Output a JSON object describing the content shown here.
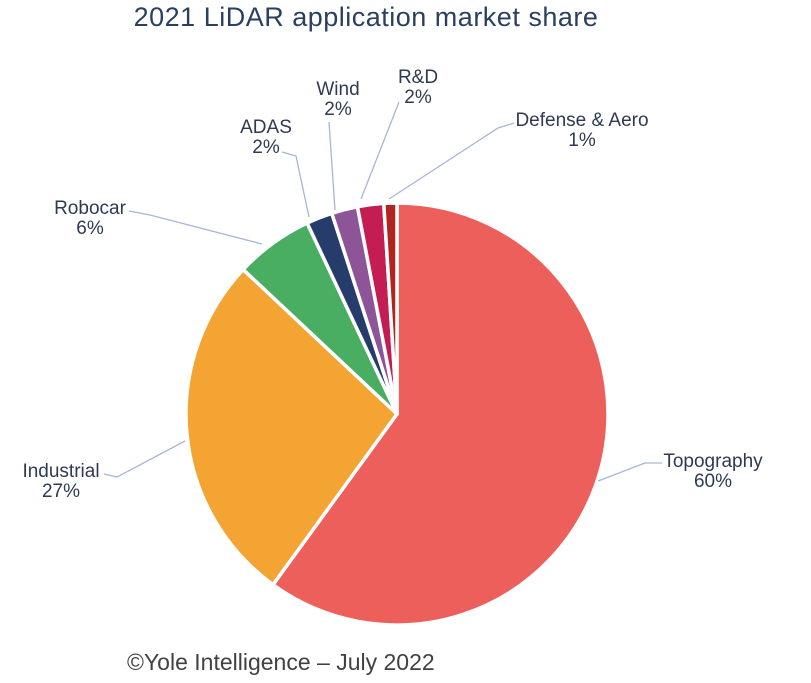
{
  "title": "2021 LiDAR application market share",
  "footer": {
    "text": "©Yole Intelligence – July 2022"
  },
  "chart_data": {
    "type": "pie",
    "title": "2021 LiDAR application market share",
    "start_angle_deg": 0,
    "direction": "clockwise",
    "total": 100,
    "legend_position": "callout-labels",
    "slices": [
      {
        "label": "Topography",
        "value": 60,
        "pct_label": "60%",
        "color": "#EC5F5A"
      },
      {
        "label": "Industrial",
        "value": 27,
        "pct_label": "27%",
        "color": "#F4A433"
      },
      {
        "label": "Robocar",
        "value": 6,
        "pct_label": "6%",
        "color": "#49AE62"
      },
      {
        "label": "ADAS",
        "value": 2,
        "pct_label": "2%",
        "color": "#263C6B"
      },
      {
        "label": "Wind",
        "value": 2,
        "pct_label": "2%",
        "color": "#8D5598"
      },
      {
        "label": "R&D",
        "value": 2,
        "pct_label": "2%",
        "color": "#C31D53"
      },
      {
        "label": "Defense & Aero",
        "value": 1,
        "pct_label": "1%",
        "color": "#B0251F"
      }
    ],
    "source": "©Yole Intelligence – July 2022",
    "colors": {
      "title_text": "#2b3f60",
      "label_text": "#2e3a53",
      "leader_line": "#a7b6d4",
      "slice_gap": "#ffffff"
    }
  }
}
